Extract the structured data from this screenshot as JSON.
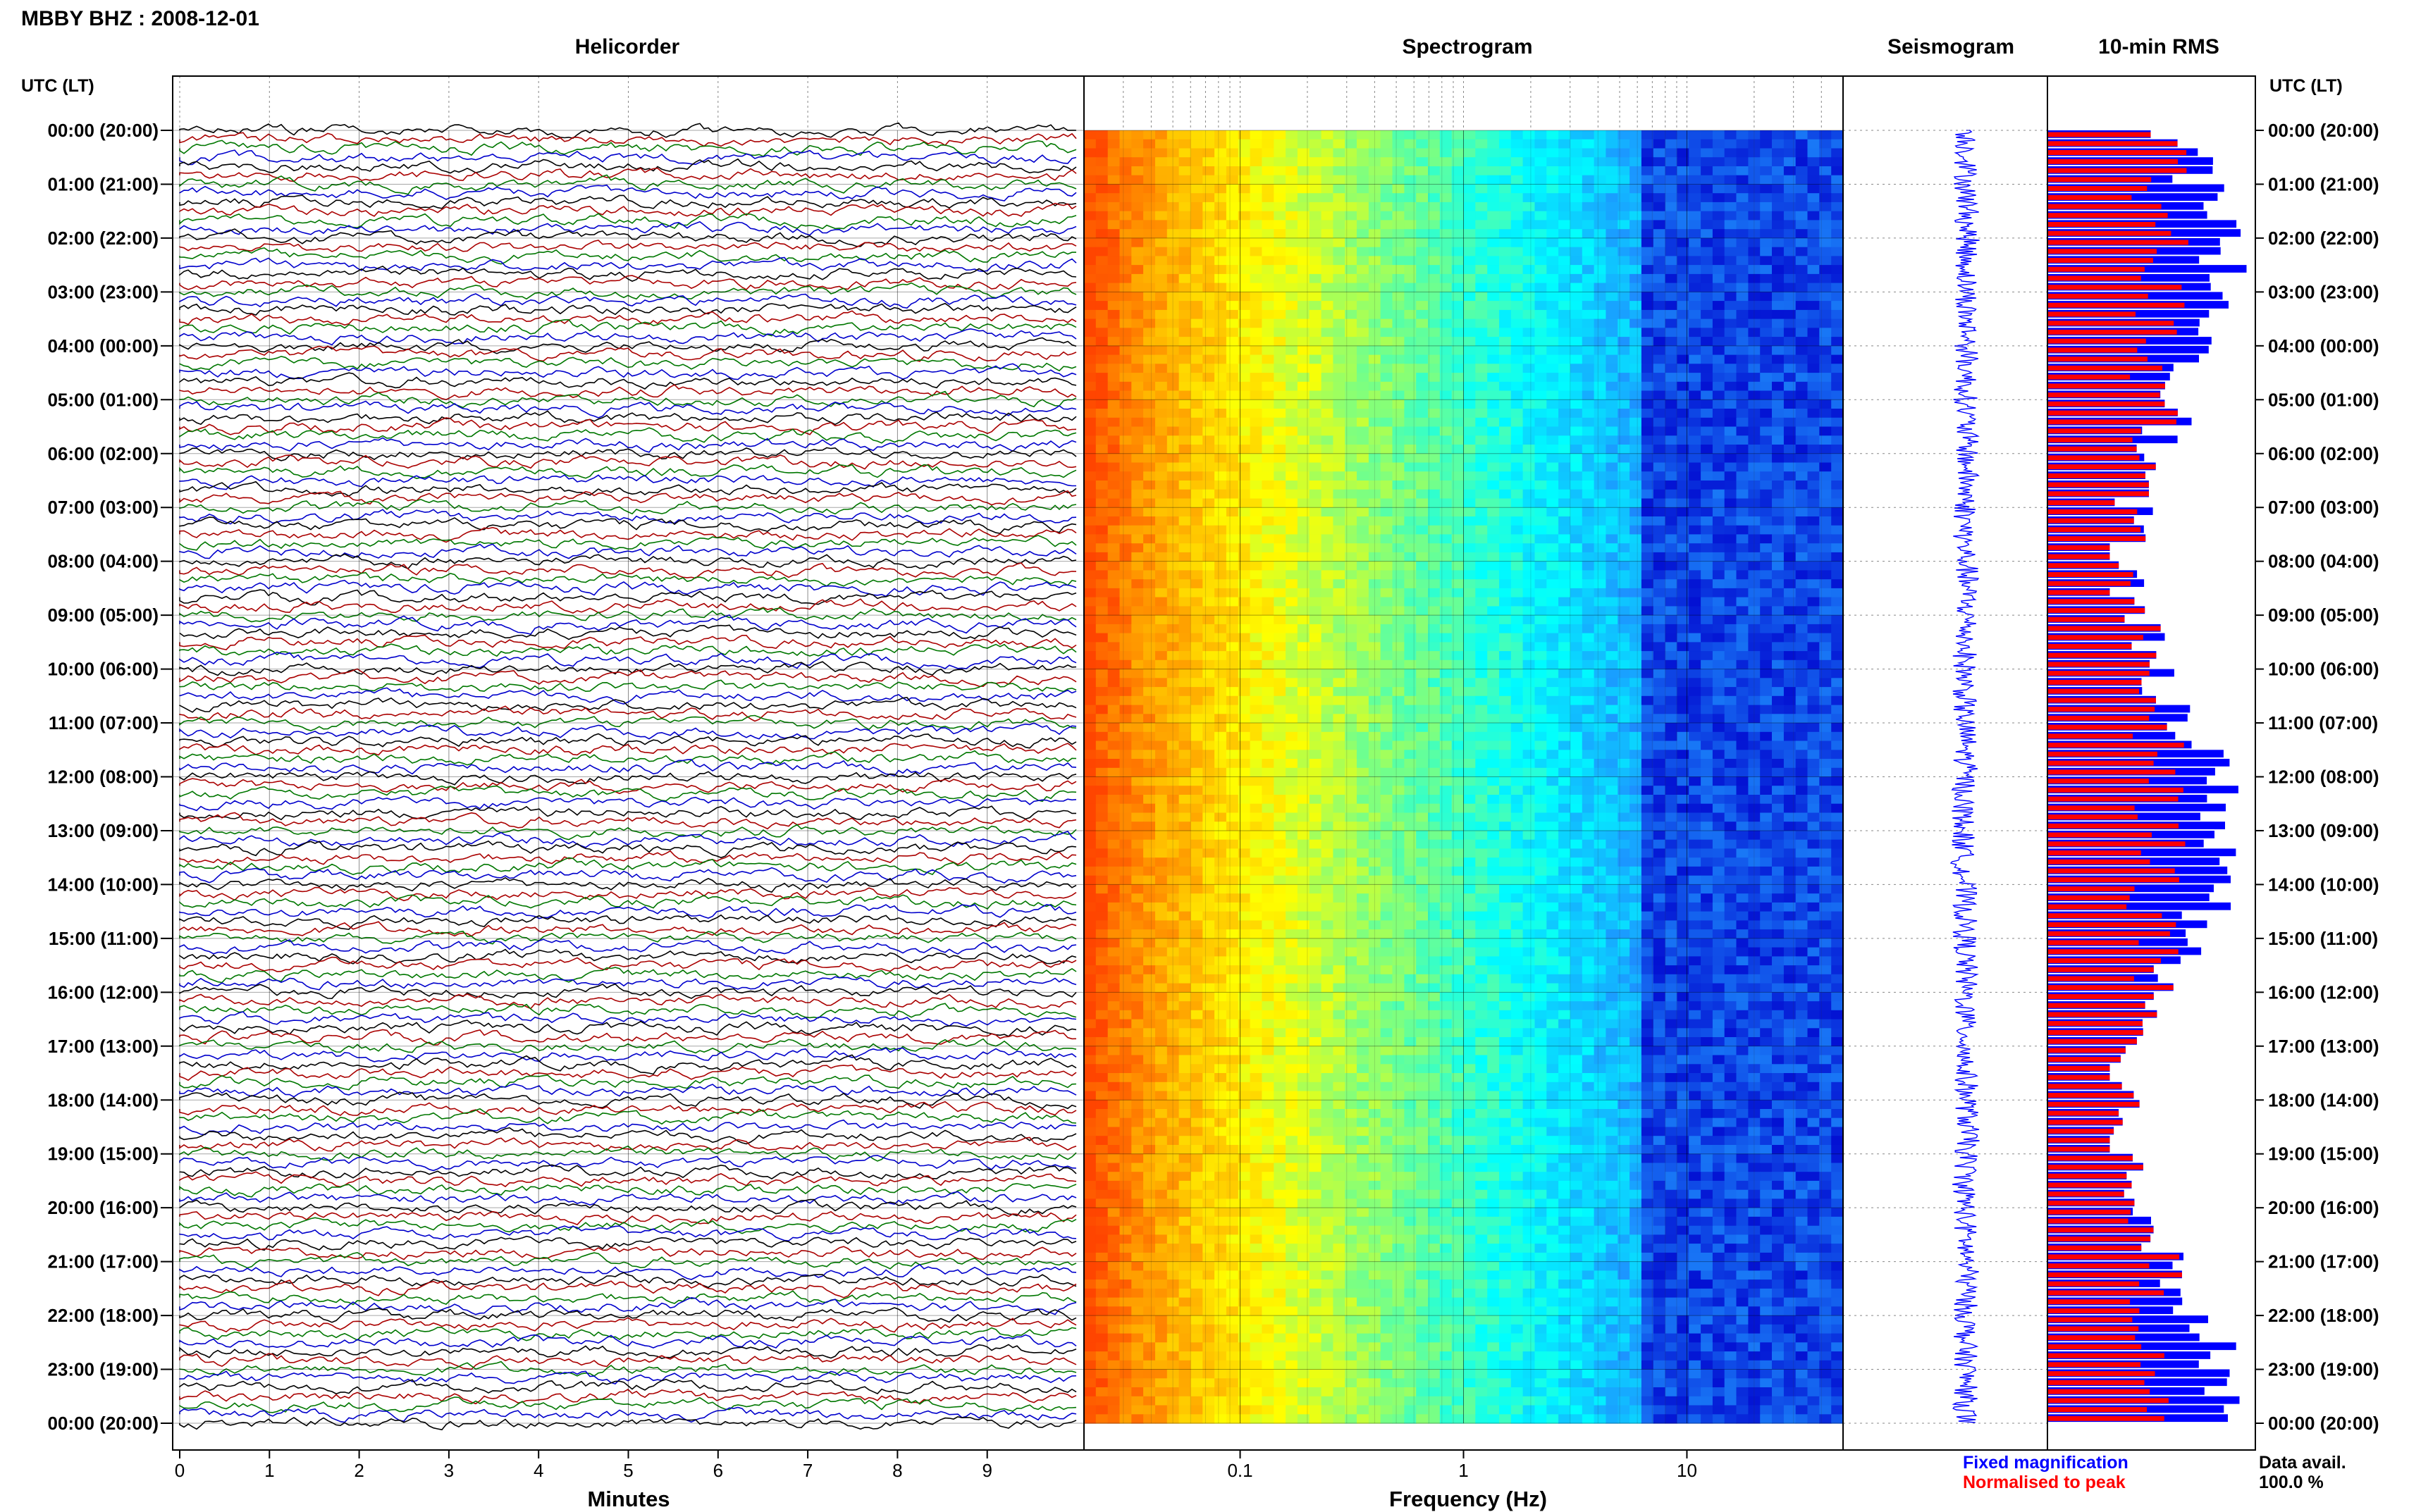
{
  "page": {
    "title": "MBBY BHZ : 2008-12-01",
    "utc_label_left": "UTC (LT)",
    "utc_label_right": "UTC (LT)"
  },
  "panels": {
    "helicorder": "Helicorder",
    "spectrogram": "Spectrogram",
    "seismogram": "Seismogram",
    "rms": "10-min RMS"
  },
  "legend": {
    "fixed": "Fixed magnification",
    "normalised": "Normalised to peak",
    "fixed_color": "#0000ff",
    "normalised_color": "#ff0000",
    "data_avail_label": "Data avail.",
    "data_avail_value": "100.0 %"
  },
  "colors": {
    "trace_cycle": [
      "#000000",
      "#aa0000",
      "#007700",
      "#0000cc"
    ],
    "spectrogram_scale": [
      "#ff4500",
      "#ffa500",
      "#ffff00",
      "#7fff7f",
      "#00ffff",
      "#1e90ff",
      "#0000cd"
    ]
  },
  "chart_data": [
    {
      "type": "line",
      "panel": "Helicorder",
      "xlabel": "Minutes",
      "x_ticks": [
        "0",
        "1",
        "2",
        "3",
        "4",
        "5",
        "6",
        "7",
        "8",
        "9"
      ],
      "xlim": [
        0,
        10
      ],
      "lines_per_hour": 6,
      "hours": 24
    },
    {
      "type": "heatmap",
      "panel": "Spectrogram",
      "xlabel": "Frequency (Hz)",
      "x_scale": "log",
      "x_ticks": [
        "0.1",
        "1",
        "10"
      ],
      "xlim": [
        0.02,
        50
      ]
    },
    {
      "type": "line",
      "panel": "Seismogram"
    },
    {
      "type": "bar",
      "panel": "10-min RMS",
      "series": [
        {
          "name": "Fixed magnification",
          "color": "#0000ff"
        },
        {
          "name": "Normalised to peak",
          "color": "#ff0000"
        }
      ],
      "hour_labels": [
        "00:00 (20:00)",
        "01:00 (21:00)",
        "02:00 (22:00)",
        "03:00 (23:00)",
        "04:00 (00:00)",
        "05:00 (01:00)",
        "06:00 (02:00)",
        "07:00 (03:00)",
        "08:00 (04:00)",
        "09:00 (05:00)",
        "10:00 (06:00)",
        "11:00 (07:00)",
        "12:00 (08:00)",
        "13:00 (09:00)",
        "14:00 (10:00)",
        "15:00 (11:00)",
        "16:00 (12:00)",
        "17:00 (13:00)",
        "18:00 (14:00)",
        "19:00 (15:00)",
        "20:00 (16:00)",
        "21:00 (17:00)",
        "22:00 (18:00)",
        "23:00 (19:00)",
        "00:00 (20:00)"
      ]
    }
  ]
}
